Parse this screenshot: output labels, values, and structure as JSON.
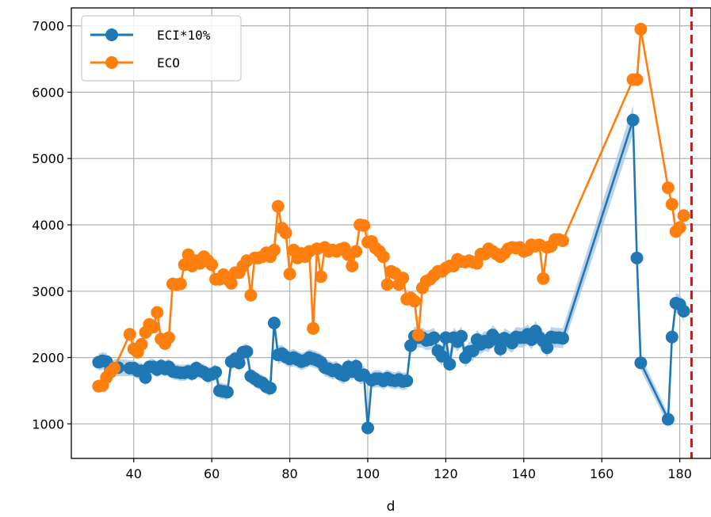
{
  "chart_data": {
    "type": "line",
    "xlabel": "d",
    "ylabel": "",
    "xlim": [
      24,
      188
    ],
    "ylim": [
      480,
      7270
    ],
    "x_ticks": [
      40,
      60,
      80,
      100,
      120,
      140,
      160,
      180
    ],
    "y_ticks": [
      1000,
      2000,
      3000,
      4000,
      5000,
      6000,
      7000
    ],
    "grid": true,
    "legend_position": "top-left",
    "vline": {
      "x": 183,
      "color": "#ff0000",
      "style": "dashed"
    },
    "series": [
      {
        "name": "ECI*10%",
        "color": "#1f77b4",
        "band_color": "#a6c5e2",
        "x": [
          31,
          32,
          33,
          34,
          35,
          36,
          39,
          40,
          41,
          42,
          43,
          44,
          45,
          46,
          47,
          48,
          49,
          50,
          51,
          52,
          53,
          54,
          55,
          56,
          57,
          58,
          59,
          60,
          61,
          62,
          63,
          64,
          65,
          66,
          67,
          68,
          69,
          70,
          71,
          72,
          73,
          74,
          75,
          76,
          77,
          78,
          79,
          80,
          81,
          82,
          83,
          84,
          85,
          86,
          87,
          88,
          89,
          90,
          91,
          92,
          93,
          94,
          95,
          96,
          97,
          98,
          99,
          100,
          101,
          102,
          103,
          104,
          105,
          106,
          107,
          108,
          109,
          110,
          111,
          112,
          113,
          114,
          115,
          116,
          117,
          118,
          119,
          120,
          121,
          122,
          123,
          124,
          125,
          126,
          127,
          128,
          129,
          130,
          131,
          132,
          133,
          134,
          135,
          136,
          137,
          138,
          139,
          140,
          141,
          142,
          143,
          144,
          145,
          146,
          147,
          148,
          149,
          150,
          168,
          169,
          170,
          177,
          178,
          179,
          180,
          181
        ],
        "values": [
          1930,
          1950,
          1940,
          1800,
          1840,
          1850,
          1840,
          1840,
          1800,
          1800,
          1700,
          1860,
          1860,
          1820,
          1870,
          1830,
          1860,
          1790,
          1780,
          1770,
          1770,
          1790,
          1760,
          1840,
          1800,
          1780,
          1730,
          1750,
          1780,
          1500,
          1490,
          1480,
          1940,
          1980,
          1920,
          2080,
          2090,
          1720,
          1680,
          1640,
          1620,
          1560,
          1540,
          2520,
          2040,
          2060,
          2010,
          1980,
          2000,
          1970,
          1940,
          1960,
          2000,
          1980,
          1960,
          1930,
          1850,
          1830,
          1800,
          1820,
          1750,
          1730,
          1860,
          1790,
          1870,
          1730,
          1740,
          940,
          1660,
          1680,
          1680,
          1650,
          1690,
          1660,
          1650,
          1670,
          1640,
          1650,
          2180,
          2320,
          2300,
          2300,
          2260,
          2270,
          2300,
          2100,
          2020,
          2300,
          1900,
          2300,
          2240,
          2320,
          2000,
          2090,
          2100,
          2270,
          2200,
          2250,
          2230,
          2340,
          2280,
          2130,
          2290,
          2260,
          2220,
          2310,
          2300,
          2300,
          2350,
          2270,
          2400,
          2300,
          2250,
          2150,
          2310,
          2300,
          2300,
          2290,
          5580,
          3500,
          1920,
          1070,
          2310,
          2820,
          2800,
          2700
        ],
        "band": [
          130,
          130,
          130,
          130,
          130,
          130,
          120,
          120,
          120,
          120,
          120,
          120,
          120,
          120,
          120,
          120,
          120,
          120,
          120,
          120,
          120,
          120,
          120,
          120,
          120,
          120,
          120,
          120,
          120,
          120,
          120,
          120,
          120,
          120,
          120,
          120,
          120,
          120,
          120,
          120,
          120,
          120,
          120,
          140,
          140,
          130,
          130,
          130,
          130,
          130,
          130,
          130,
          130,
          130,
          130,
          130,
          130,
          130,
          130,
          130,
          130,
          130,
          130,
          130,
          130,
          130,
          130,
          160,
          130,
          130,
          130,
          130,
          130,
          130,
          130,
          130,
          130,
          130,
          150,
          150,
          150,
          150,
          150,
          150,
          150,
          150,
          150,
          150,
          150,
          150,
          150,
          150,
          150,
          150,
          150,
          150,
          150,
          150,
          150,
          150,
          150,
          150,
          150,
          150,
          150,
          150,
          150,
          150,
          150,
          150,
          150,
          150,
          150,
          150,
          150,
          150,
          150,
          150,
          220,
          150,
          110,
          90,
          140,
          150,
          150,
          150
        ]
      },
      {
        "name": "ECO",
        "color": "#ff7f0e",
        "x": [
          31,
          32,
          33,
          34,
          35,
          39,
          40,
          41,
          42,
          43,
          44,
          45,
          46,
          47,
          48,
          49,
          50,
          51,
          52,
          53,
          54,
          55,
          56,
          57,
          58,
          59,
          60,
          61,
          62,
          63,
          64,
          65,
          66,
          67,
          68,
          69,
          70,
          71,
          72,
          73,
          74,
          75,
          76,
          77,
          78,
          79,
          80,
          81,
          82,
          83,
          84,
          85,
          86,
          87,
          88,
          89,
          90,
          91,
          92,
          93,
          94,
          95,
          96,
          97,
          98,
          99,
          100,
          101,
          102,
          103,
          104,
          105,
          106,
          107,
          108,
          109,
          110,
          111,
          112,
          113,
          114,
          115,
          116,
          117,
          118,
          119,
          120,
          121,
          122,
          123,
          124,
          125,
          126,
          127,
          128,
          129,
          130,
          131,
          132,
          133,
          134,
          135,
          136,
          137,
          138,
          139,
          140,
          141,
          142,
          143,
          144,
          145,
          146,
          147,
          148,
          149,
          150,
          168,
          169,
          170,
          177,
          178,
          179,
          180,
          181
        ],
        "values": [
          1570,
          1580,
          1700,
          1780,
          1840,
          2350,
          2130,
          2080,
          2200,
          2380,
          2500,
          2460,
          2680,
          2280,
          2210,
          2300,
          3110,
          3100,
          3110,
          3400,
          3550,
          3380,
          3460,
          3420,
          3520,
          3460,
          3400,
          3180,
          3180,
          3250,
          3180,
          3120,
          3280,
          3280,
          3380,
          3460,
          2940,
          3500,
          3500,
          3520,
          3580,
          3520,
          3620,
          4280,
          3950,
          3880,
          3260,
          3620,
          3500,
          3570,
          3520,
          3600,
          2440,
          3640,
          3220,
          3660,
          3600,
          3620,
          3600,
          3630,
          3650,
          3550,
          3380,
          3600,
          4000,
          3990,
          3740,
          3750,
          3650,
          3600,
          3520,
          3100,
          3300,
          3270,
          3100,
          3200,
          2880,
          2900,
          2850,
          2340,
          3050,
          3150,
          3180,
          3240,
          3300,
          3300,
          3350,
          3380,
          3380,
          3480,
          3450,
          3440,
          3460,
          3440,
          3420,
          3560,
          3560,
          3640,
          3600,
          3560,
          3520,
          3570,
          3640,
          3660,
          3650,
          3660,
          3600,
          3620,
          3700,
          3680,
          3700,
          3190,
          3660,
          3680,
          3780,
          3780,
          3760,
          6190,
          6190,
          6950,
          4560,
          4310,
          3900,
          3960,
          4140
        ]
      }
    ]
  }
}
